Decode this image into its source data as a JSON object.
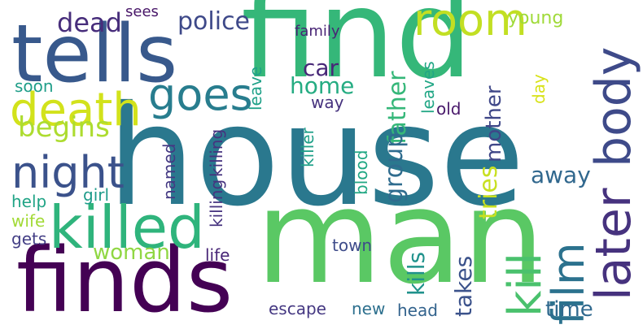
{
  "word_cloud": {
    "words": [
      {
        "text": "house",
        "color": "#2a788e"
      },
      {
        "text": "find",
        "color": "#35b779"
      },
      {
        "text": "man",
        "color": "#5ac864"
      },
      {
        "text": "finds",
        "color": "#440154"
      },
      {
        "text": "tells",
        "color": "#38598c"
      },
      {
        "text": "killed",
        "color": "#2fb47c"
      },
      {
        "text": "later",
        "color": "#46327e"
      },
      {
        "text": "body",
        "color": "#3e4a89"
      },
      {
        "text": "room",
        "color": "#c2df23"
      },
      {
        "text": "death",
        "color": "#d2e21b"
      },
      {
        "text": "goes",
        "color": "#287d8e"
      },
      {
        "text": "night",
        "color": "#3b528b"
      },
      {
        "text": "film",
        "color": "#2c728e"
      },
      {
        "text": "kill",
        "color": "#4ac16d"
      },
      {
        "text": "begins",
        "color": "#addc30"
      },
      {
        "text": "dead",
        "color": "#472d7b"
      },
      {
        "text": "police",
        "color": "#3e4989"
      },
      {
        "text": "home",
        "color": "#25ac82"
      },
      {
        "text": "car",
        "color": "#482878"
      },
      {
        "text": "father",
        "color": "#35b779"
      },
      {
        "text": "mother",
        "color": "#3f4788"
      },
      {
        "text": "group",
        "color": "#2f6c8e"
      },
      {
        "text": "tries",
        "color": "#c8e020"
      },
      {
        "text": "away",
        "color": "#31688e"
      },
      {
        "text": "woman",
        "color": "#90d743"
      },
      {
        "text": "kills",
        "color": "#20928c"
      },
      {
        "text": "takes",
        "color": "#3b528b"
      },
      {
        "text": "time",
        "color": "#30698e"
      },
      {
        "text": "family",
        "color": "#482475"
      },
      {
        "text": "young",
        "color": "#a0da39"
      },
      {
        "text": "sees",
        "color": "#481668"
      },
      {
        "text": "leave",
        "color": "#1fa188"
      },
      {
        "text": "leaves",
        "color": "#21a685"
      },
      {
        "text": "way",
        "color": "#46327e"
      },
      {
        "text": "soon",
        "color": "#1f9e89"
      },
      {
        "text": "day",
        "color": "#d8e219"
      },
      {
        "text": "old",
        "color": "#48186a"
      },
      {
        "text": "killer",
        "color": "#1fa088"
      },
      {
        "text": "blood",
        "color": "#22a884"
      },
      {
        "text": "killing",
        "color": "#46337f"
      },
      {
        "text": "named",
        "color": "#443983"
      },
      {
        "text": "killer",
        "color": "#277f8e"
      },
      {
        "text": "girl",
        "color": "#1e9b8a"
      },
      {
        "text": "help",
        "color": "#20a486"
      },
      {
        "text": "wife",
        "color": "#a2da37"
      },
      {
        "text": "gets",
        "color": "#433e85"
      },
      {
        "text": "life",
        "color": "#482677"
      },
      {
        "text": "town",
        "color": "#3e4c8a"
      },
      {
        "text": "escape",
        "color": "#453882"
      },
      {
        "text": "new",
        "color": "#2d708e"
      },
      {
        "text": "head",
        "color": "#33638d"
      }
    ]
  }
}
